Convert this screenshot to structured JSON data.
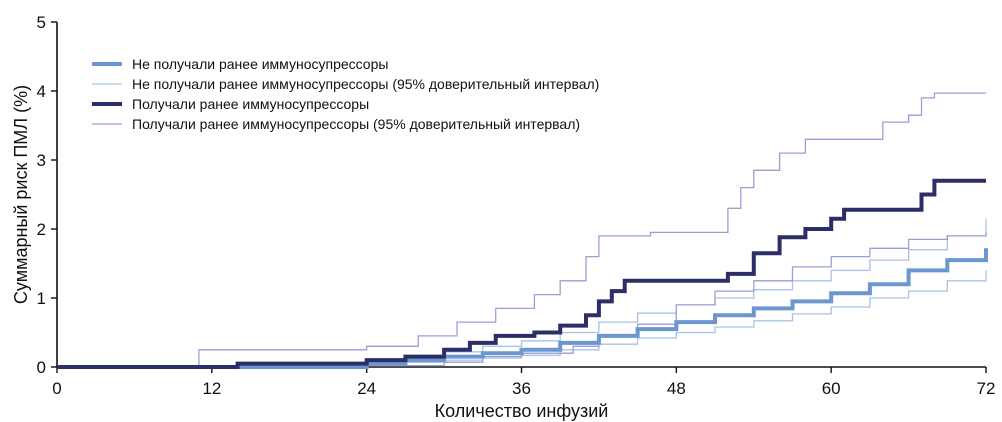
{
  "chart_data": {
    "type": "line",
    "ylabel": "Суммарный риск ПМЛ (%)",
    "xlabel": "Количество инфузий",
    "xlim": [
      0,
      72
    ],
    "ylim": [
      0,
      5
    ],
    "x_ticks": [
      0,
      12,
      24,
      36,
      48,
      60,
      72
    ],
    "y_ticks": [
      0,
      1,
      2,
      3,
      4,
      5
    ],
    "grid": false,
    "legend_position": "top-left",
    "series": [
      {
        "name": "Не получали ранее иммуносупрессоры",
        "color": "#6c96cf",
        "style": "thick",
        "points": [
          [
            0,
            0
          ],
          [
            24,
            0.05
          ],
          [
            27,
            0.1
          ],
          [
            30,
            0.15
          ],
          [
            33,
            0.2
          ],
          [
            36,
            0.25
          ],
          [
            39,
            0.35
          ],
          [
            42,
            0.45
          ],
          [
            45,
            0.55
          ],
          [
            48,
            0.65
          ],
          [
            51,
            0.75
          ],
          [
            54,
            0.85
          ],
          [
            57,
            0.95
          ],
          [
            60,
            1.07
          ],
          [
            63,
            1.2
          ],
          [
            66,
            1.4
          ],
          [
            69,
            1.55
          ],
          [
            72,
            1.72
          ]
        ]
      },
      {
        "name": "Не получали ранее иммуносупрессоры (95% доверительный интервал)",
        "color": "#a9c2e6",
        "style": "thin",
        "points_upper": [
          [
            0,
            0
          ],
          [
            24,
            0.05
          ],
          [
            27,
            0.15
          ],
          [
            30,
            0.22
          ],
          [
            33,
            0.3
          ],
          [
            36,
            0.38
          ],
          [
            39,
            0.5
          ],
          [
            42,
            0.65
          ],
          [
            45,
            0.78
          ],
          [
            48,
            0.9
          ],
          [
            51,
            1.0
          ],
          [
            54,
            1.12
          ],
          [
            57,
            1.25
          ],
          [
            60,
            1.4
          ],
          [
            63,
            1.55
          ],
          [
            66,
            1.7
          ],
          [
            69,
            1.9
          ],
          [
            72,
            2.15
          ]
        ],
        "points_lower": [
          [
            0,
            0
          ],
          [
            24,
            0.03
          ],
          [
            27,
            0.07
          ],
          [
            30,
            0.1
          ],
          [
            33,
            0.13
          ],
          [
            36,
            0.17
          ],
          [
            39,
            0.25
          ],
          [
            42,
            0.33
          ],
          [
            45,
            0.42
          ],
          [
            48,
            0.5
          ],
          [
            51,
            0.58
          ],
          [
            54,
            0.67
          ],
          [
            57,
            0.77
          ],
          [
            60,
            0.87
          ],
          [
            63,
            1.0
          ],
          [
            66,
            1.1
          ],
          [
            69,
            1.25
          ],
          [
            72,
            1.4
          ]
        ]
      },
      {
        "name": "Получали ранее иммуносупрессоры",
        "color": "#2c2f66",
        "style": "thick",
        "points": [
          [
            0,
            0
          ],
          [
            11,
            0
          ],
          [
            14,
            0.05
          ],
          [
            24,
            0.1
          ],
          [
            27,
            0.15
          ],
          [
            30,
            0.25
          ],
          [
            32,
            0.35
          ],
          [
            34,
            0.45
          ],
          [
            37,
            0.5
          ],
          [
            39,
            0.6
          ],
          [
            41,
            0.75
          ],
          [
            42,
            0.95
          ],
          [
            43,
            1.1
          ],
          [
            44,
            1.25
          ],
          [
            48,
            1.25
          ],
          [
            52,
            1.35
          ],
          [
            54,
            1.65
          ],
          [
            56,
            1.88
          ],
          [
            58,
            2.0
          ],
          [
            60,
            2.15
          ],
          [
            61,
            2.28
          ],
          [
            66,
            2.28
          ],
          [
            67,
            2.5
          ],
          [
            68,
            2.7
          ],
          [
            72,
            2.7
          ]
        ]
      },
      {
        "name": "Получали ранее иммуносупрессоры (95% доверительный интервал)",
        "color": "#9a9fd8",
        "style": "thin",
        "points_upper": [
          [
            0,
            0
          ],
          [
            10,
            0
          ],
          [
            11,
            0.25
          ],
          [
            24,
            0.3
          ],
          [
            28,
            0.45
          ],
          [
            31,
            0.65
          ],
          [
            34,
            0.85
          ],
          [
            37,
            1.05
          ],
          [
            39,
            1.25
          ],
          [
            41,
            1.6
          ],
          [
            42,
            1.9
          ],
          [
            46,
            1.95
          ],
          [
            49,
            1.95
          ],
          [
            52,
            2.3
          ],
          [
            53,
            2.6
          ],
          [
            54,
            2.85
          ],
          [
            56,
            3.1
          ],
          [
            58,
            3.3
          ],
          [
            62,
            3.3
          ],
          [
            64,
            3.55
          ],
          [
            66,
            3.65
          ],
          [
            67,
            3.9
          ],
          [
            68,
            3.97
          ],
          [
            72,
            3.97
          ]
        ],
        "points_lower": [
          [
            0,
            0
          ],
          [
            24,
            0.02
          ],
          [
            30,
            0.07
          ],
          [
            33,
            0.15
          ],
          [
            36,
            0.2
          ],
          [
            40,
            0.3
          ],
          [
            42,
            0.45
          ],
          [
            45,
            0.62
          ],
          [
            48,
            0.9
          ],
          [
            51,
            1.1
          ],
          [
            54,
            1.25
          ],
          [
            57,
            1.45
          ],
          [
            60,
            1.6
          ],
          [
            63,
            1.72
          ],
          [
            66,
            1.85
          ],
          [
            69,
            1.9
          ],
          [
            72,
            1.95
          ]
        ]
      }
    ]
  }
}
